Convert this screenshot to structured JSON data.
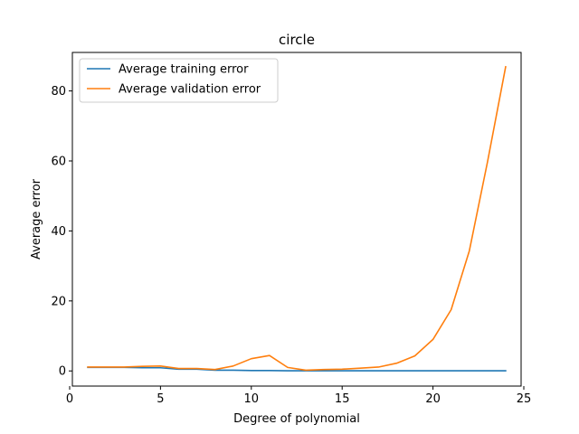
{
  "chart_data": {
    "type": "line",
    "title": "circle",
    "xlabel": "Degree of polynomial",
    "ylabel": "Average error",
    "xlim": [
      0.15,
      24.85
    ],
    "ylim": [
      -4.33,
      91.0
    ],
    "xticks": [
      0,
      5,
      10,
      15,
      20,
      25
    ],
    "yticks": [
      0,
      20,
      40,
      60,
      80
    ],
    "grid": false,
    "legend_position": "top-left",
    "x": [
      1,
      2,
      3,
      4,
      5,
      6,
      7,
      8,
      9,
      10,
      11,
      12,
      13,
      14,
      15,
      16,
      17,
      18,
      19,
      20,
      21,
      22,
      23,
      24
    ],
    "series": [
      {
        "name": "Average training error",
        "color": "#1f77b4",
        "values": [
          1.0,
          1.0,
          1.0,
          0.9,
          0.9,
          0.5,
          0.5,
          0.2,
          0.2,
          0.1,
          0.1,
          0.05,
          0.05,
          0.05,
          0.05,
          0.05,
          0.05,
          0.05,
          0.05,
          0.05,
          0.05,
          0.05,
          0.05,
          0.05
        ]
      },
      {
        "name": "Average validation error",
        "color": "#ff7f0e",
        "values": [
          1.1,
          1.1,
          1.1,
          1.3,
          1.4,
          0.7,
          0.7,
          0.4,
          1.4,
          3.5,
          4.4,
          1.0,
          0.2,
          0.4,
          0.5,
          0.8,
          1.1,
          2.2,
          4.3,
          9.0,
          17.5,
          34.3,
          59.7,
          86.9
        ]
      }
    ]
  }
}
